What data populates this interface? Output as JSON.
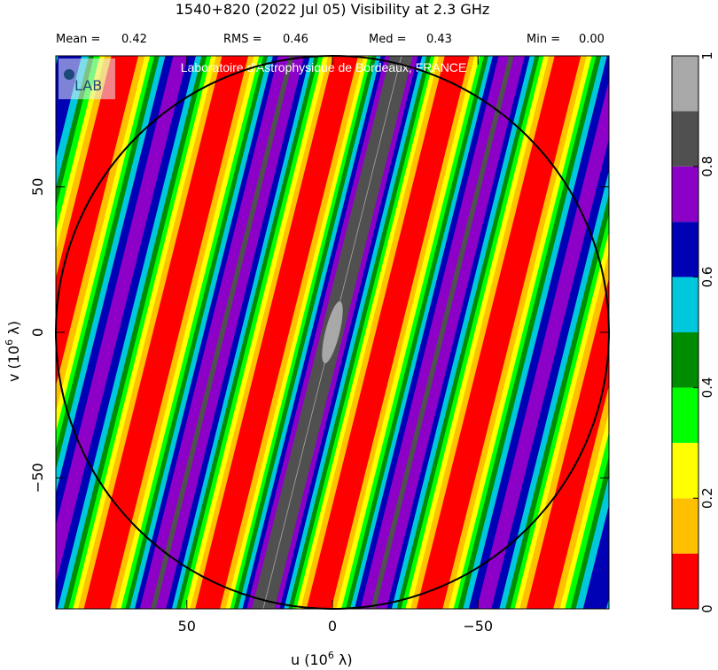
{
  "header": {
    "title": "1540+820   (2022 Jul 05)   Visibility at  2.3 GHz"
  },
  "stats": [
    {
      "label": "Mean =",
      "value": "0.42"
    },
    {
      "label": "RMS =",
      "value": "0.46"
    },
    {
      "label": "Med =",
      "value": "0.43"
    },
    {
      "label": "Min =",
      "value": "0.00"
    }
  ],
  "watermark": "Laboratoire d'Astrophysique de Bordeaux, FRANCE",
  "logo": {
    "text": "LAB"
  },
  "chart_data": {
    "type": "heatmap",
    "title": "1540+820   (2022 Jul 05)   Visibility at  2.3 GHz",
    "xlabel": "u  (10^6 λ)",
    "ylabel": "v  (10^6 λ)",
    "x_reversed": true,
    "xlim": [
      95,
      -95
    ],
    "ylim": [
      -95,
      95
    ],
    "x_ticks": [
      50,
      0,
      -50
    ],
    "x_tick_labels": [
      "50",
      "0",
      "−50"
    ],
    "y_ticks": [
      50,
      0,
      -50
    ],
    "y_tick_labels": [
      "50",
      "0",
      "−50"
    ],
    "uv_coverage_circle_radius": 95,
    "stripe_pattern": {
      "description": "fringe-like visibility amplitude, maximum along central tilted ridge",
      "central_peak_value": 0.9,
      "fringe_period_u": 38,
      "tilt_du_per_dv": -0.25
    },
    "colorbar": {
      "range": [
        0,
        1
      ],
      "ticks": [
        0,
        0.2,
        0.4,
        0.6,
        0.8,
        1
      ],
      "tick_labels": [
        "0",
        "0.2",
        "0.4",
        "0.6",
        "0.8",
        "1"
      ],
      "levels": [
        {
          "from": 0.0,
          "to": 0.1,
          "color": "#ff0000"
        },
        {
          "from": 0.1,
          "to": 0.2,
          "color": "#ffc000"
        },
        {
          "from": 0.2,
          "to": 0.3,
          "color": "#ffff00"
        },
        {
          "from": 0.3,
          "to": 0.4,
          "color": "#00ff00"
        },
        {
          "from": 0.4,
          "to": 0.5,
          "color": "#008c00"
        },
        {
          "from": 0.5,
          "to": 0.6,
          "color": "#00c8dc"
        },
        {
          "from": 0.6,
          "to": 0.7,
          "color": "#0000b4"
        },
        {
          "from": 0.7,
          "to": 0.8,
          "color": "#8c00c8"
        },
        {
          "from": 0.8,
          "to": 0.9,
          "color": "#505050"
        },
        {
          "from": 0.9,
          "to": 1.0,
          "color": "#a8a8a8"
        }
      ]
    }
  }
}
